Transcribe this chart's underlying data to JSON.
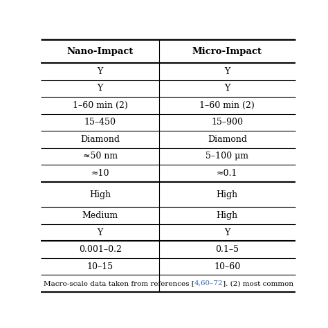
{
  "headers": [
    "Nano-Impact",
    "Micro-Impact"
  ],
  "rows": [
    [
      "Y",
      "Y"
    ],
    [
      "Y",
      "Y"
    ],
    [
      "1–60 min (2)",
      "1–60 min (2)"
    ],
    [
      "15–450",
      "15–900"
    ],
    [
      "Diamond",
      "Diamond"
    ],
    [
      "≈50 nm",
      "5–100 μm"
    ],
    [
      "≈10",
      "≈0.1"
    ],
    [
      "High",
      "High"
    ],
    [
      "Medium",
      "High"
    ],
    [
      "Y",
      "Y"
    ],
    [
      "0.001–0.2",
      "0.1–5"
    ],
    [
      "10–15",
      "10–60"
    ]
  ],
  "footer_plain1": "Macro-scale data taken from references [",
  "footer_ref": "4,60–72",
  "footer_plain2": "]. (2) most common",
  "ref_color": "#3060c0",
  "bg_color": "#ffffff",
  "text_color": "#000000",
  "header_fontsize": 9.5,
  "cell_fontsize": 9.0,
  "footer_fontsize": 7.5,
  "row_heights_rel": [
    1.4,
    1.0,
    1.0,
    1.0,
    1.0,
    1.0,
    1.0,
    1.0,
    1.5,
    1.0,
    1.0,
    1.0,
    1.0,
    1.0,
    0.75
  ],
  "thick_after": [
    0,
    7,
    10
  ],
  "col_split": 0.465
}
